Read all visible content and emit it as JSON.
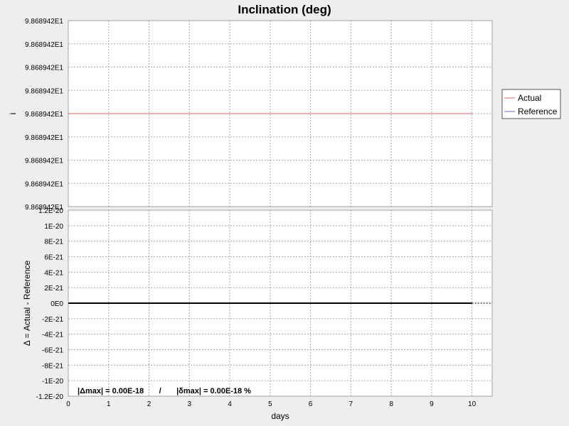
{
  "chart_data": {
    "type": "line",
    "title": "Inclination (deg)",
    "xlabel": "days",
    "x_ticks": [
      "0",
      "1",
      "2",
      "3",
      "4",
      "5",
      "6",
      "7",
      "8",
      "9",
      "10"
    ],
    "xlim": [
      0,
      10.5
    ],
    "top_panel": {
      "ylabel": "i",
      "y_ticks": [
        "9.868942E1",
        "9.868942E1",
        "9.868942E1",
        "9.868942E1",
        "9.868942E1",
        "9.868942E1",
        "9.868942E1",
        "9.868942E1",
        "9.868942E1"
      ],
      "series": [
        {
          "name": "Actual",
          "color": "#e06666",
          "x": [
            0,
            10
          ],
          "y": [
            98.68942,
            98.68942
          ]
        },
        {
          "name": "Reference",
          "color": "#6666cc",
          "x": [
            0,
            10
          ],
          "y": [
            98.68942,
            98.68942
          ]
        }
      ]
    },
    "bottom_panel": {
      "ylabel": "Δ = Actual - Reference",
      "y_ticks": [
        "1.2E-20",
        "1E-20",
        "8E-21",
        "6E-21",
        "4E-21",
        "2E-21",
        "0E0",
        "-2E-21",
        "-4E-21",
        "-6E-21",
        "-8E-21",
        "-1E-20",
        "-1.2E-20"
      ],
      "ylim": [
        -1.2e-20,
        1.2e-20
      ],
      "series": [
        {
          "color": "#000000",
          "x": [
            0,
            10
          ],
          "y": [
            0,
            0
          ]
        }
      ],
      "extension": {
        "style": "dotted",
        "x": [
          10,
          10.5
        ],
        "y": [
          0,
          0
        ]
      }
    },
    "legend": {
      "placement": "right",
      "entries": [
        {
          "label": "Actual",
          "color": "#e06666"
        },
        {
          "label": "Reference",
          "color": "#6666cc"
        }
      ]
    },
    "annotation": "|Δmax| = 0.00E-18       /       |δmax| = 0.00E-18 %",
    "grid": true
  }
}
